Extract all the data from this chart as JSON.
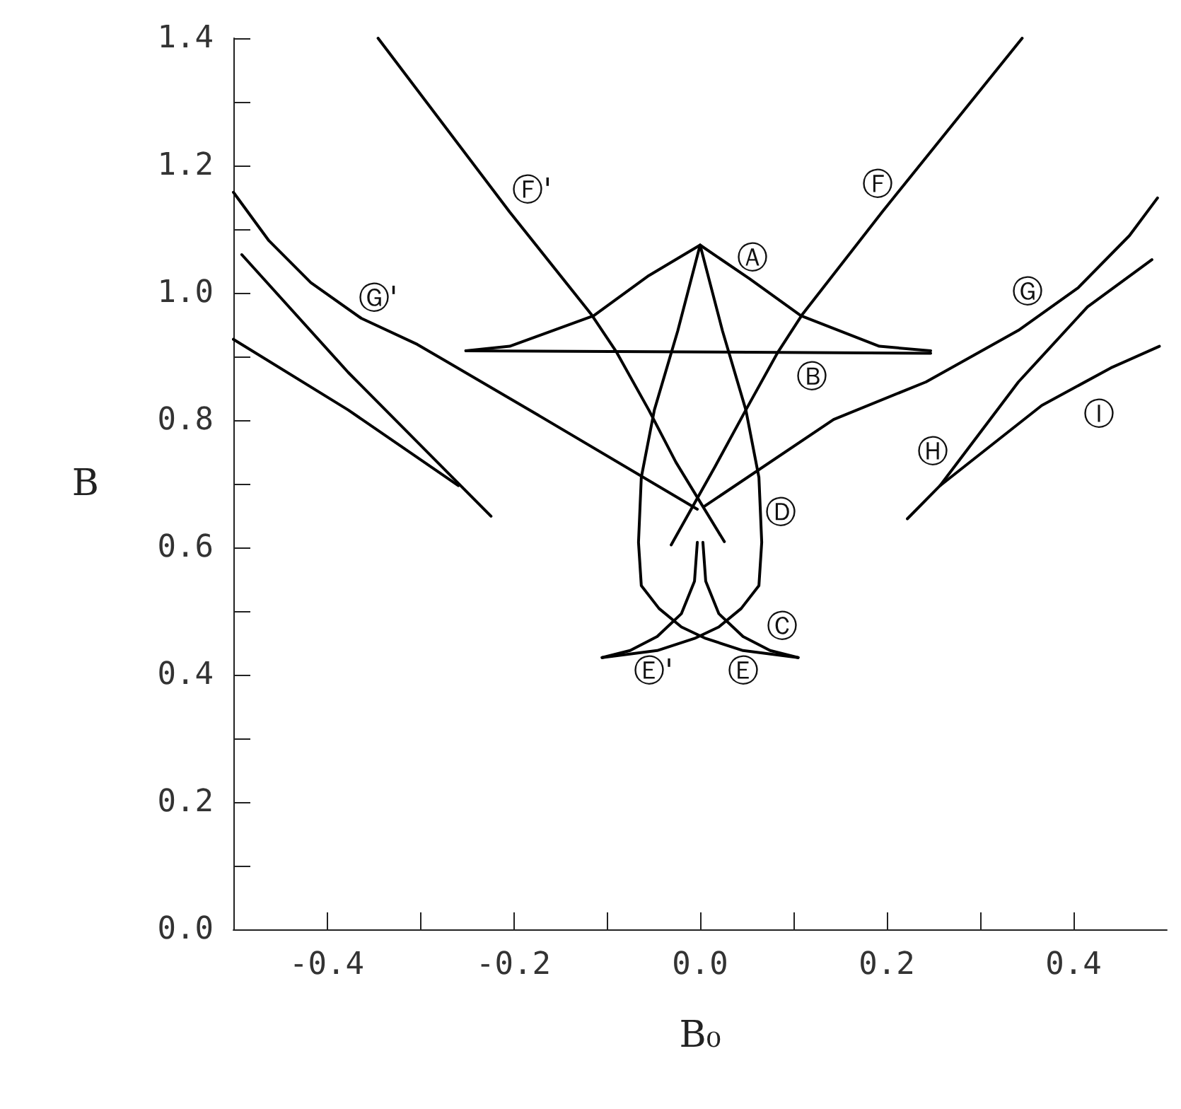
{
  "chart_data": {
    "type": "line",
    "xlabel": "B₀",
    "ylabel": "B",
    "xlim": [
      -0.5,
      0.5
    ],
    "ylim": [
      0,
      1.4
    ],
    "xticks": [
      {
        "value": -0.5,
        "label": null
      },
      {
        "value": -0.4,
        "label": "-0.4"
      },
      {
        "value": -0.3,
        "label": null
      },
      {
        "value": -0.2,
        "label": "-0.2"
      },
      {
        "value": -0.1,
        "label": null
      },
      {
        "value": 0,
        "label": "0.0"
      },
      {
        "value": 0.1,
        "label": null
      },
      {
        "value": 0.2,
        "label": "0.2"
      },
      {
        "value": 0.3,
        "label": null
      },
      {
        "value": 0.4,
        "label": "0.4"
      }
    ],
    "yticks": [
      {
        "value": 0,
        "label": "0.0"
      },
      {
        "value": 0.1,
        "label": null
      },
      {
        "value": 0.2,
        "label": "0.2"
      },
      {
        "value": 0.3,
        "label": null
      },
      {
        "value": 0.4,
        "label": "0.4"
      },
      {
        "value": 0.5,
        "label": null
      },
      {
        "value": 0.6,
        "label": "0.6"
      },
      {
        "value": 0.7,
        "label": null
      },
      {
        "value": 0.8,
        "label": "0.8"
      },
      {
        "value": 0.9,
        "label": null
      },
      {
        "value": 1.0,
        "label": "1.0"
      },
      {
        "value": 1.1,
        "label": null
      },
      {
        "value": 1.2,
        "label": "1.2"
      },
      {
        "value": 1.3,
        "label": null
      },
      {
        "value": 1.4,
        "label": "1.4"
      }
    ],
    "grid": false,
    "marker": "none",
    "line_style": "solid",
    "series": [
      {
        "color": "#000000",
        "x": [
          -0.251,
          -0.204,
          -0.114,
          -0.055,
          0,
          0.053,
          0.108,
          0.192,
          0.247
        ],
        "values": [
          0.909,
          0.916,
          0.964,
          1.027,
          1.075,
          1.022,
          0.964,
          0.916,
          0.909
        ]
      },
      {
        "color": "#000000",
        "x": [
          -0.251,
          0.247
        ],
        "values": [
          0.909,
          0.905
        ]
      },
      {
        "color": "#000000",
        "x": [
          0,
          -0.024,
          -0.049,
          -0.063,
          -0.066,
          -0.063,
          -0.044,
          -0.02,
          0.006,
          0.046,
          0.105
        ],
        "values": [
          1.075,
          0.94,
          0.816,
          0.71,
          0.608,
          0.54,
          0.504,
          0.475,
          0.457,
          0.438,
          0.427
        ]
      },
      {
        "color": "#000000",
        "x": [
          0,
          0.024,
          0.049,
          0.063,
          0.066,
          0.063,
          0.044,
          0.02,
          -0.006,
          -0.046,
          -0.105
        ],
        "values": [
          1.075,
          0.94,
          0.816,
          0.71,
          0.608,
          0.54,
          0.504,
          0.475,
          0.457,
          0.438,
          0.427
        ]
      },
      {
        "color": "#000000",
        "x": [
          -0.003,
          -0.006,
          -0.02,
          -0.046,
          -0.075,
          -0.105
        ],
        "values": [
          0.608,
          0.547,
          0.496,
          0.46,
          0.438,
          0.427
        ]
      },
      {
        "color": "#000000",
        "x": [
          0.003,
          0.006,
          0.02,
          0.046,
          0.075,
          0.105
        ],
        "values": [
          0.608,
          0.547,
          0.496,
          0.46,
          0.438,
          0.427
        ]
      },
      {
        "color": "#000000",
        "x": [
          -0.345,
          -0.204,
          -0.117,
          -0.09,
          -0.055,
          -0.026,
          0.026
        ],
        "values": [
          1.4,
          1.127,
          0.967,
          0.908,
          0.816,
          0.734,
          0.609
        ]
      },
      {
        "color": "#000000",
        "x": [
          0.345,
          0.195,
          0.11,
          0.083,
          0.049,
          0.016,
          -0.031
        ],
        "values": [
          1.4,
          1.127,
          0.967,
          0.906,
          0.816,
          0.727,
          0.604
        ]
      },
      {
        "color": "#000000",
        "x": [
          -0.5,
          -0.462,
          -0.417,
          -0.363,
          -0.303,
          -0.184,
          -0.003
        ],
        "values": [
          1.158,
          1.082,
          1.016,
          0.96,
          0.919,
          0.817,
          0.66
        ]
      },
      {
        "color": "#000000",
        "x": [
          0.004,
          0.143,
          0.242,
          0.341,
          0.405,
          0.46,
          0.49
        ],
        "values": [
          0.664,
          0.801,
          0.86,
          0.941,
          1.008,
          1.09,
          1.149
        ]
      },
      {
        "color": "#000000",
        "x": [
          0.222,
          0.257,
          0.341,
          0.415,
          0.484
        ],
        "values": [
          0.645,
          0.697,
          0.86,
          0.978,
          1.052
        ]
      },
      {
        "color": "#000000",
        "x": [
          0.257,
          0.366,
          0.44,
          0.492
        ],
        "values": [
          0.697,
          0.823,
          0.882,
          0.916
        ]
      },
      {
        "color": "#000000",
        "x": [
          -0.491,
          -0.377,
          -0.224
        ],
        "values": [
          1.06,
          0.875,
          0.649
        ]
      },
      {
        "color": "#000000",
        "x": [
          -0.5,
          -0.377,
          -0.259
        ],
        "values": [
          0.927,
          0.816,
          0.697
        ]
      }
    ],
    "annotations": [
      {
        "text": "Ⓐ",
        "x": 0.056,
        "y": 1.053
      },
      {
        "text": "Ⓑ",
        "x": 0.12,
        "y": 0.867
      },
      {
        "text": "Ⓒ",
        "x": 0.088,
        "y": 0.475
      },
      {
        "text": "Ⓓ",
        "x": 0.086,
        "y": 0.653
      },
      {
        "text": "Ⓔ'",
        "x": -0.05,
        "y": 0.405
      },
      {
        "text": "Ⓔ",
        "x": 0.046,
        "y": 0.405
      },
      {
        "text": "Ⓕ",
        "x": 0.19,
        "y": 1.169
      },
      {
        "text": "Ⓕ'",
        "x": -0.18,
        "y": 1.16
      },
      {
        "text": "Ⓖ",
        "x": 0.351,
        "y": 1.0
      },
      {
        "text": "Ⓖ'",
        "x": -0.345,
        "y": 0.99
      },
      {
        "text": "Ⓗ",
        "x": 0.249,
        "y": 0.749
      },
      {
        "text": "Ⓘ",
        "x": 0.427,
        "y": 0.808
      }
    ]
  }
}
